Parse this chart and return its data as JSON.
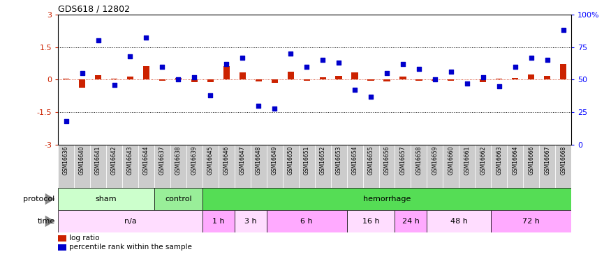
{
  "title": "GDS618 / 12802",
  "samples": [
    "GSM16636",
    "GSM16640",
    "GSM16641",
    "GSM16642",
    "GSM16643",
    "GSM16644",
    "GSM16637",
    "GSM16638",
    "GSM16639",
    "GSM16645",
    "GSM16646",
    "GSM16647",
    "GSM16648",
    "GSM16649",
    "GSM16650",
    "GSM16651",
    "GSM16652",
    "GSM16653",
    "GSM16654",
    "GSM16655",
    "GSM16656",
    "GSM16657",
    "GSM16658",
    "GSM16659",
    "GSM16660",
    "GSM16661",
    "GSM16662",
    "GSM16663",
    "GSM16664",
    "GSM16666",
    "GSM16667",
    "GSM16668"
  ],
  "log_ratio": [
    0.04,
    -0.38,
    0.22,
    0.04,
    0.13,
    0.62,
    -0.06,
    0.07,
    -0.12,
    -0.13,
    0.62,
    0.33,
    -0.09,
    -0.16,
    0.38,
    -0.06,
    0.11,
    0.17,
    0.33,
    -0.06,
    -0.09,
    0.13,
    -0.04,
    -0.06,
    -0.04,
    0.02,
    -0.12,
    0.04,
    0.07,
    0.23,
    0.18,
    0.73
  ],
  "percentile": [
    18,
    55,
    80,
    46,
    68,
    82,
    60,
    50,
    52,
    38,
    62,
    67,
    30,
    28,
    70,
    60,
    65,
    63,
    42,
    37,
    55,
    62,
    58,
    50,
    56,
    47,
    52,
    45,
    60,
    67,
    65,
    88
  ],
  "protocol_groups": [
    {
      "label": "sham",
      "start": 0,
      "end": 6,
      "color": "#ccffcc"
    },
    {
      "label": "control",
      "start": 6,
      "end": 9,
      "color": "#99ee99"
    },
    {
      "label": "hemorrhage",
      "start": 9,
      "end": 32,
      "color": "#55dd55"
    }
  ],
  "time_groups": [
    {
      "label": "n/a",
      "start": 0,
      "end": 9,
      "color": "#ffddff"
    },
    {
      "label": "1 h",
      "start": 9,
      "end": 11,
      "color": "#ffaaff"
    },
    {
      "label": "3 h",
      "start": 11,
      "end": 13,
      "color": "#ffddff"
    },
    {
      "label": "6 h",
      "start": 13,
      "end": 18,
      "color": "#ffaaff"
    },
    {
      "label": "16 h",
      "start": 18,
      "end": 21,
      "color": "#ffddff"
    },
    {
      "label": "24 h",
      "start": 21,
      "end": 23,
      "color": "#ffaaff"
    },
    {
      "label": "48 h",
      "start": 23,
      "end": 27,
      "color": "#ffddff"
    },
    {
      "label": "72 h",
      "start": 27,
      "end": 32,
      "color": "#ffaaff"
    }
  ],
  "sample_box_color": "#cccccc",
  "ylim_left": [
    -3,
    3
  ],
  "ylim_right": [
    0,
    100
  ],
  "yticks_left": [
    -3,
    -1.5,
    0,
    1.5,
    3
  ],
  "yticks_right": [
    0,
    25,
    50,
    75,
    100
  ],
  "ytick_labels_right": [
    "0",
    "25",
    "50",
    "75",
    "100%"
  ],
  "hlines": [
    1.5,
    -1.5
  ],
  "bar_color": "#cc2200",
  "dot_color": "#0000cc",
  "bg_color": "#ffffff"
}
